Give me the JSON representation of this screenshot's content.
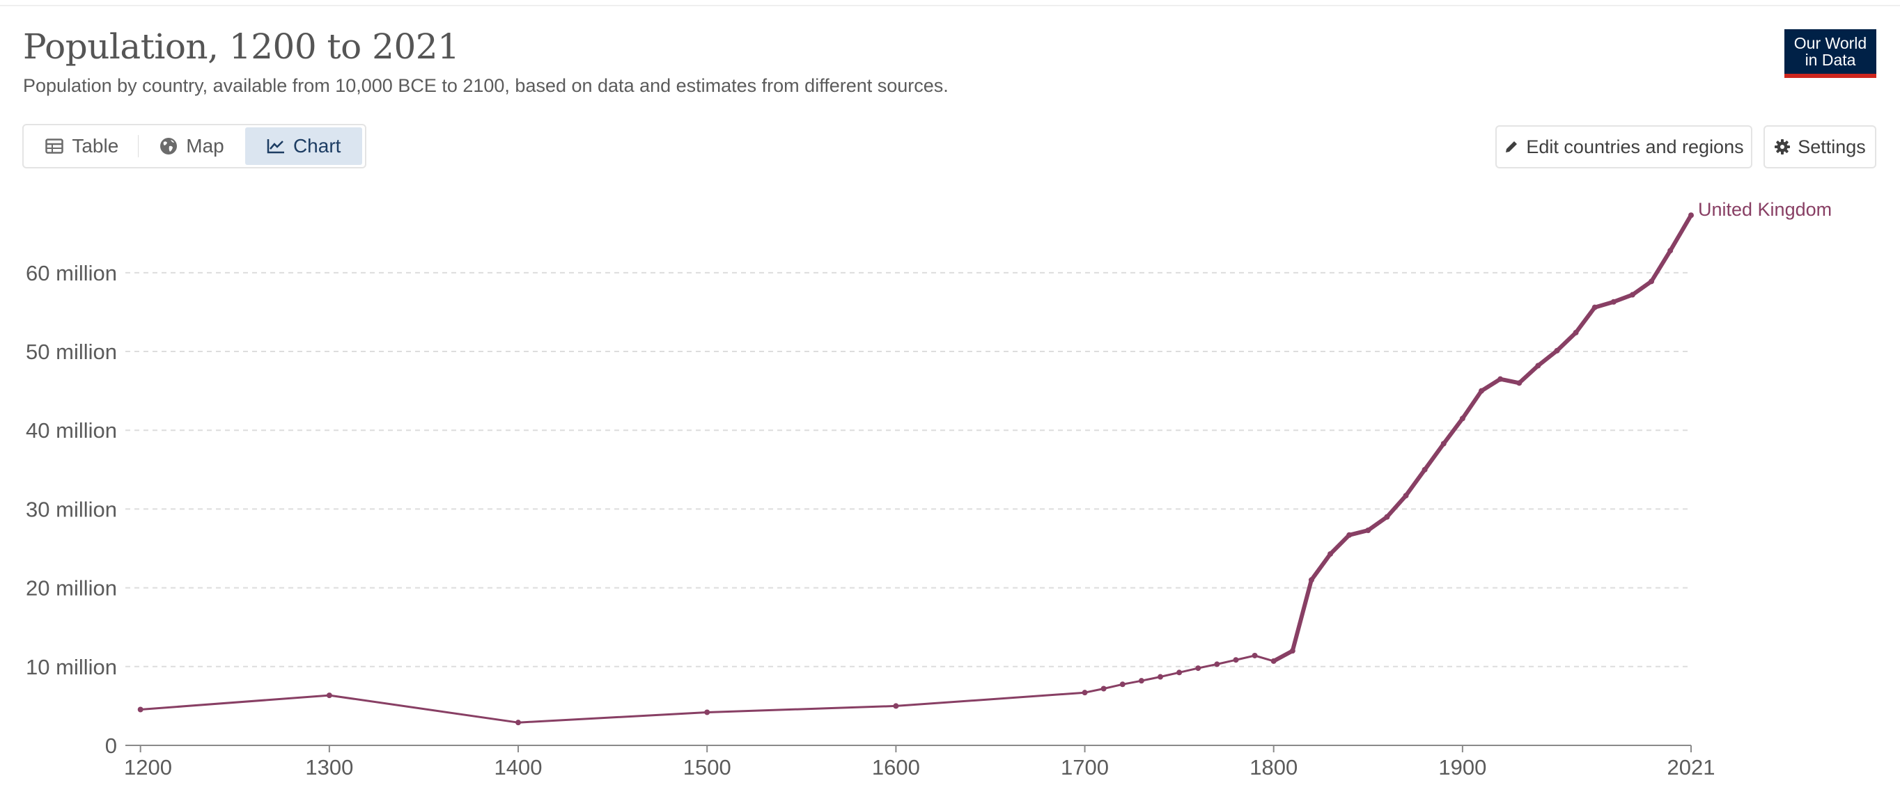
{
  "header": {
    "title": "Population, 1200 to 2021",
    "subtitle": "Population by country, available from 10,000 BCE to 2100, based on data and estimates from different sources.",
    "logo_line1": "Our World",
    "logo_line2": "in Data"
  },
  "tabs": [
    {
      "label": "Table",
      "icon": "table-icon",
      "active": false
    },
    {
      "label": "Map",
      "icon": "globe-icon",
      "active": false
    },
    {
      "label": "Chart",
      "icon": "line-chart-icon",
      "active": true
    }
  ],
  "controls": {
    "edit_label": "Edit countries and regions",
    "settings_label": "Settings"
  },
  "colors": {
    "series": "#883f64",
    "grid": "#dddddd",
    "axis": "#8a8a8a",
    "active_tab": "#dbe5f0",
    "logo_bg": "#002147",
    "logo_stripe": "#ce261e"
  },
  "chart_data": {
    "type": "line",
    "title": "Population, 1200 to 2021",
    "xlabel": "",
    "ylabel": "",
    "xlim": [
      1192,
      2021
    ],
    "ylim": [
      0,
      69000000
    ],
    "grid": "horizontal dashed",
    "x_ticks": [
      {
        "value": 1200,
        "label": "1200"
      },
      {
        "value": 1300,
        "label": "1300"
      },
      {
        "value": 1400,
        "label": "1400"
      },
      {
        "value": 1500,
        "label": "1500"
      },
      {
        "value": 1600,
        "label": "1600"
      },
      {
        "value": 1700,
        "label": "1700"
      },
      {
        "value": 1800,
        "label": "1800"
      },
      {
        "value": 1900,
        "label": "1900"
      },
      {
        "value": 2021,
        "label": "2021"
      }
    ],
    "y_ticks": [
      {
        "value": 0,
        "label": "0"
      },
      {
        "value": 10000000,
        "label": "10 million"
      },
      {
        "value": 20000000,
        "label": "20 million"
      },
      {
        "value": 30000000,
        "label": "30 million"
      },
      {
        "value": 40000000,
        "label": "40 million"
      },
      {
        "value": 50000000,
        "label": "50 million"
      },
      {
        "value": 60000000,
        "label": "60 million"
      }
    ],
    "series": [
      {
        "name": "United Kingdom",
        "x": [
          1200,
          1300,
          1400,
          1500,
          1600,
          1700,
          1710,
          1720,
          1730,
          1740,
          1750,
          1760,
          1770,
          1780,
          1790,
          1800,
          1810,
          1820,
          1830,
          1840,
          1850,
          1860,
          1870,
          1880,
          1890,
          1900,
          1910,
          1920,
          1930,
          1940,
          1950,
          1960,
          1970,
          1980,
          1990,
          2000,
          2010,
          2021
        ],
        "values": [
          4550000,
          6350000,
          2900000,
          4200000,
          5000000,
          6700000,
          7200000,
          7750000,
          8200000,
          8700000,
          9250000,
          9800000,
          10300000,
          10850000,
          11400000,
          10700000,
          12000000,
          21000000,
          24300000,
          26700000,
          27300000,
          29000000,
          31700000,
          35000000,
          38300000,
          41500000,
          45000000,
          46500000,
          46000000,
          48200000,
          50100000,
          52400000,
          55600000,
          56300000,
          57200000,
          58900000,
          62800000,
          67300000
        ]
      }
    ]
  }
}
